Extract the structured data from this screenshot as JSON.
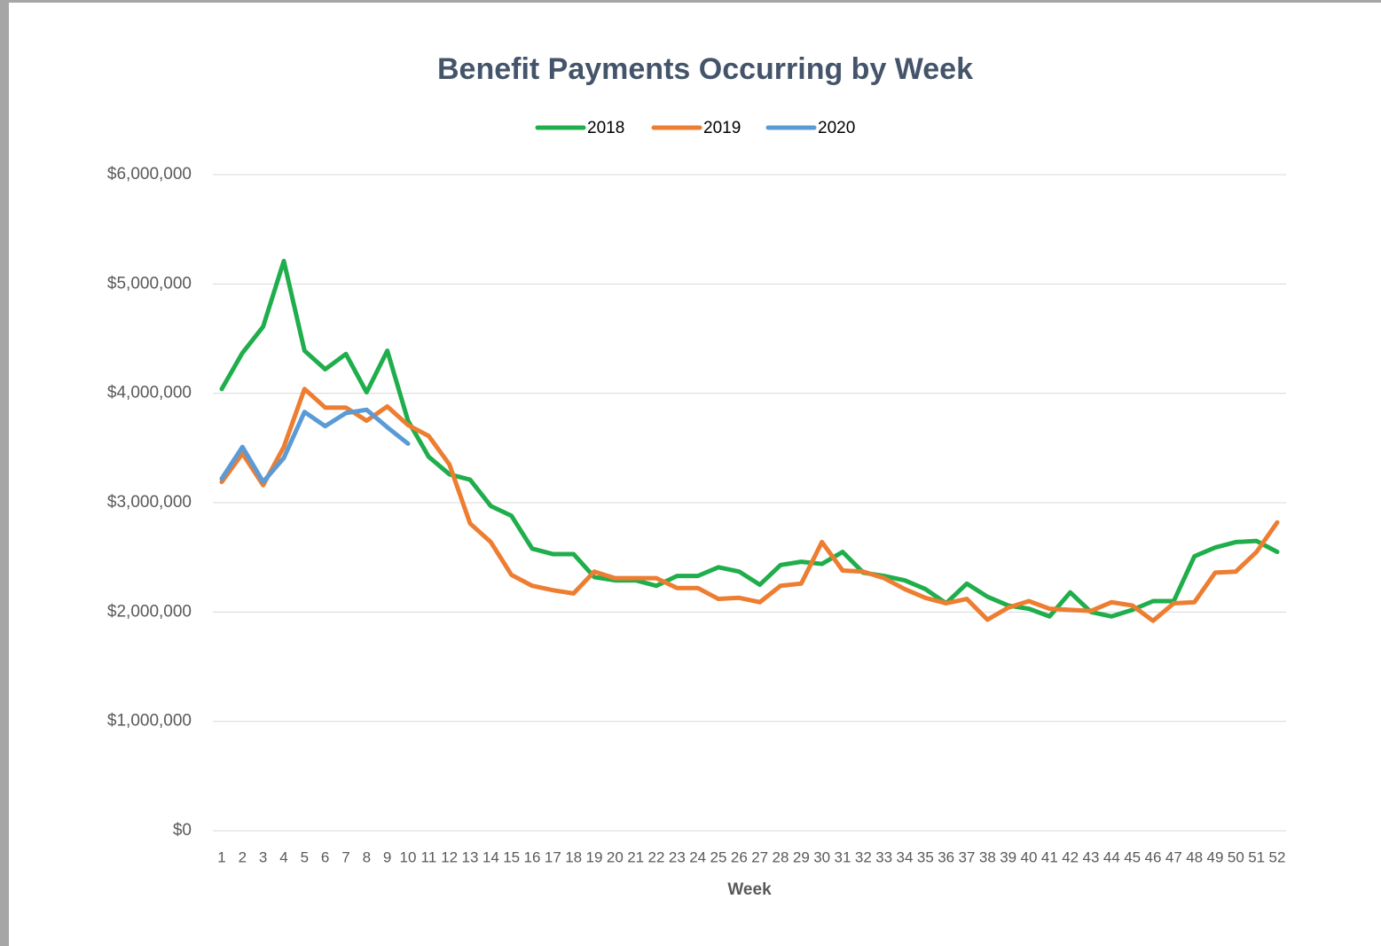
{
  "chart_data": {
    "type": "line",
    "title": "Benefit Payments Occurring by Week",
    "xlabel": "Week",
    "categories": [
      "1",
      "2",
      "3",
      "4",
      "5",
      "6",
      "7",
      "8",
      "9",
      "10",
      "11",
      "12",
      "13",
      "14",
      "15",
      "16",
      "17",
      "18",
      "19",
      "20",
      "21",
      "22",
      "23",
      "24",
      "25",
      "26",
      "27",
      "28",
      "29",
      "30",
      "31",
      "32",
      "33",
      "34",
      "35",
      "36",
      "37",
      "38",
      "39",
      "40",
      "41",
      "42",
      "43",
      "44",
      "45",
      "46",
      "47",
      "48",
      "49",
      "50",
      "51",
      "52"
    ],
    "series": [
      {
        "name": "2018",
        "color": "#1fae4b",
        "values": [
          4040000,
          4370000,
          4610000,
          5210000,
          4390000,
          4220000,
          4360000,
          4010000,
          4390000,
          3750000,
          3420000,
          3260000,
          3210000,
          2970000,
          2880000,
          2580000,
          2530000,
          2530000,
          2320000,
          2290000,
          2290000,
          2240000,
          2330000,
          2330000,
          2410000,
          2370000,
          2250000,
          2430000,
          2460000,
          2440000,
          2550000,
          2360000,
          2330000,
          2290000,
          2210000,
          2080000,
          2260000,
          2140000,
          2060000,
          2030000,
          1960000,
          2180000,
          2000000,
          1960000,
          2020000,
          2100000,
          2100000,
          2510000,
          2590000,
          2640000,
          2650000,
          2550000
        ]
      },
      {
        "name": "2019",
        "color": "#ed7d31",
        "values": [
          3190000,
          3450000,
          3160000,
          3510000,
          4040000,
          3870000,
          3870000,
          3750000,
          3880000,
          3710000,
          3610000,
          3350000,
          2810000,
          2640000,
          2340000,
          2240000,
          2200000,
          2170000,
          2370000,
          2310000,
          2310000,
          2310000,
          2220000,
          2220000,
          2120000,
          2130000,
          2090000,
          2240000,
          2260000,
          2640000,
          2380000,
          2370000,
          2310000,
          2210000,
          2130000,
          2080000,
          2120000,
          1930000,
          2040000,
          2100000,
          2030000,
          2020000,
          2010000,
          2090000,
          2060000,
          1920000,
          2080000,
          2090000,
          2360000,
          2370000,
          2550000,
          2820000
        ]
      },
      {
        "name": "2020",
        "color": "#5b9bd5",
        "values": [
          3220000,
          3510000,
          3190000,
          3410000,
          3830000,
          3700000,
          3820000,
          3850000,
          3690000,
          3540000,
          null,
          null,
          null,
          null,
          null,
          null,
          null,
          null,
          null,
          null,
          null,
          null,
          null,
          null,
          null,
          null,
          null,
          null,
          null,
          null,
          null,
          null,
          null,
          null,
          null,
          null,
          null,
          null,
          null,
          null,
          null,
          null,
          null,
          null,
          null,
          null,
          null,
          null,
          null,
          null,
          null,
          null
        ]
      }
    ],
    "ylim": [
      0,
      6000000
    ],
    "yticks": [
      {
        "value": 0,
        "label": "$0"
      },
      {
        "value": 1000000,
        "label": "$1,000,000"
      },
      {
        "value": 2000000,
        "label": "$2,000,000"
      },
      {
        "value": 3000000,
        "label": "$3,000,000"
      },
      {
        "value": 4000000,
        "label": "$4,000,000"
      },
      {
        "value": 5000000,
        "label": "$5,000,000"
      },
      {
        "value": 6000000,
        "label": "$6,000,000"
      }
    ],
    "grid": true,
    "legend": "top"
  }
}
